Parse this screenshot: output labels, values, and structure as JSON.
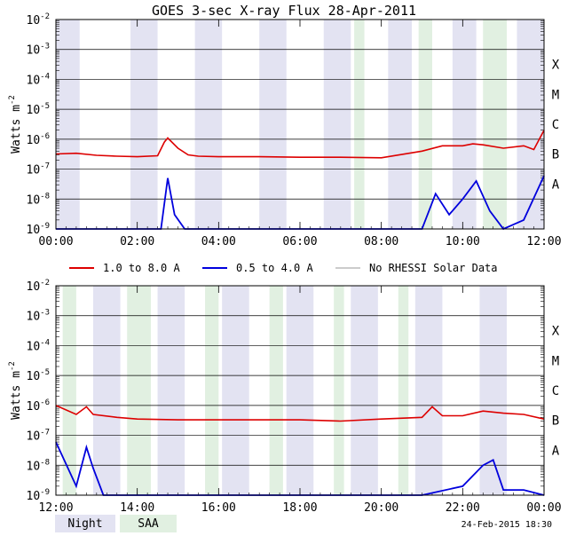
{
  "title": "GOES 3-sec X-ray Flux   28-Apr-2011",
  "footer_timestamp": "24-Feb-2015 18:30",
  "colors": {
    "long_channel": "#dd0000",
    "short_channel": "#0000dd",
    "no_rhessi": "#999999",
    "night": "#e3e3f2",
    "saa": "#e1f0e1",
    "grid": "#000000"
  },
  "legend": {
    "items": [
      {
        "label": "1.0 to 8.0 A",
        "color": "#dd0000"
      },
      {
        "label": "0.5 to 4.0 A",
        "color": "#0000dd"
      },
      {
        "label": "No RHESSI Solar Data",
        "color": "#999999"
      }
    ]
  },
  "period_legend": {
    "night_label": "Night",
    "saa_label": "SAA"
  },
  "chart_data": [
    {
      "type": "line",
      "scale": "log",
      "ylabel": "Watts m^-2",
      "xlim": [
        "00:00",
        "12:00"
      ],
      "ylim": [
        1e-09,
        0.01
      ],
      "y_ticks": [
        {
          "value": 0.01,
          "base": "10",
          "exp": "-2"
        },
        {
          "value": 0.001,
          "base": "10",
          "exp": "-3"
        },
        {
          "value": 0.0001,
          "base": "10",
          "exp": "-4"
        },
        {
          "value": 1e-05,
          "base": "10",
          "exp": "-5"
        },
        {
          "value": 1e-06,
          "base": "10",
          "exp": "-6"
        },
        {
          "value": 1e-07,
          "base": "10",
          "exp": "-7"
        },
        {
          "value": 1e-08,
          "base": "10",
          "exp": "-8"
        },
        {
          "value": 1e-09,
          "base": "10",
          "exp": "-9"
        }
      ],
      "x_ticks": [
        "00:00",
        "02:00",
        "04:00",
        "06:00",
        "08:00",
        "10:00",
        "12:00"
      ],
      "flare_classes": [
        {
          "label": "X",
          "value": 0.0001
        },
        {
          "label": "M",
          "value": 1e-05
        },
        {
          "label": "C",
          "value": 1e-06
        },
        {
          "label": "B",
          "value": 1e-07
        },
        {
          "label": "A",
          "value": 1e-08
        }
      ],
      "night_periods": [
        [
          "00:00",
          "00:35"
        ],
        [
          "01:50",
          "02:30"
        ],
        [
          "03:25",
          "04:05"
        ],
        [
          "05:00",
          "05:40"
        ],
        [
          "06:35",
          "07:15"
        ],
        [
          "08:10",
          "08:45"
        ],
        [
          "09:45",
          "10:20"
        ],
        [
          "11:20",
          "12:00"
        ]
      ],
      "saa_periods": [
        [
          "07:20",
          "07:35"
        ],
        [
          "08:55",
          "09:15"
        ],
        [
          "10:30",
          "11:05"
        ]
      ],
      "series": [
        {
          "name": "1.0 to 8.0 A",
          "x": [
            "00:00",
            "00:30",
            "01:00",
            "01:30",
            "02:00",
            "02:30",
            "02:40",
            "02:45",
            "03:00",
            "03:15",
            "03:30",
            "04:00",
            "05:00",
            "06:00",
            "07:00",
            "08:00",
            "09:00",
            "09:30",
            "10:00",
            "10:15",
            "10:30",
            "11:00",
            "11:30",
            "11:45",
            "12:00"
          ],
          "values": [
            3.2e-07,
            3.4e-07,
            2.9e-07,
            2.7e-07,
            2.6e-07,
            2.8e-07,
            8e-07,
            1.1e-06,
            5e-07,
            3e-07,
            2.7e-07,
            2.6e-07,
            2.6e-07,
            2.5e-07,
            2.5e-07,
            2.4e-07,
            4e-07,
            6e-07,
            6e-07,
            7e-07,
            6.5e-07,
            5e-07,
            6e-07,
            4.5e-07,
            2e-06
          ]
        },
        {
          "name": "0.5 to 4.0 A",
          "x": [
            "00:00",
            "01:00",
            "02:00",
            "02:35",
            "02:45",
            "02:55",
            "03:10",
            "04:00",
            "05:00",
            "06:00",
            "07:00",
            "08:00",
            "09:00",
            "09:20",
            "09:40",
            "10:00",
            "10:20",
            "10:40",
            "11:00",
            "11:30",
            "12:00"
          ],
          "values": [
            1e-09,
            1e-09,
            1e-09,
            1e-09,
            5e-08,
            3e-09,
            1e-09,
            1e-09,
            1e-09,
            1e-09,
            1e-09,
            1e-09,
            1e-09,
            1.5e-08,
            3e-09,
            1e-08,
            4e-08,
            4e-09,
            1e-09,
            2e-09,
            6e-08
          ]
        }
      ]
    },
    {
      "type": "line",
      "scale": "log",
      "ylabel": "Watts m^-2",
      "xlim": [
        "12:00",
        "00:00"
      ],
      "ylim": [
        1e-09,
        0.01
      ],
      "y_ticks": [
        {
          "value": 0.01,
          "base": "10",
          "exp": "-2"
        },
        {
          "value": 0.001,
          "base": "10",
          "exp": "-3"
        },
        {
          "value": 0.0001,
          "base": "10",
          "exp": "-4"
        },
        {
          "value": 1e-05,
          "base": "10",
          "exp": "-5"
        },
        {
          "value": 1e-06,
          "base": "10",
          "exp": "-6"
        },
        {
          "value": 1e-07,
          "base": "10",
          "exp": "-7"
        },
        {
          "value": 1e-08,
          "base": "10",
          "exp": "-8"
        },
        {
          "value": 1e-09,
          "base": "10",
          "exp": "-9"
        }
      ],
      "x_ticks": [
        "12:00",
        "14:00",
        "16:00",
        "18:00",
        "20:00",
        "22:00",
        "00:00"
      ],
      "flare_classes": [
        {
          "label": "X",
          "value": 0.0001
        },
        {
          "label": "M",
          "value": 1e-05
        },
        {
          "label": "C",
          "value": 1e-06
        },
        {
          "label": "B",
          "value": 1e-07
        },
        {
          "label": "A",
          "value": 1e-08
        }
      ],
      "night_periods": [
        [
          "12:55",
          "13:35"
        ],
        [
          "14:30",
          "15:10"
        ],
        [
          "16:05",
          "16:45"
        ],
        [
          "17:40",
          "18:20"
        ],
        [
          "19:15",
          "19:55"
        ],
        [
          "20:50",
          "21:30"
        ],
        [
          "22:25",
          "23:05"
        ]
      ],
      "saa_periods": [
        [
          "12:10",
          "12:30"
        ],
        [
          "13:45",
          "14:20"
        ],
        [
          "15:40",
          "16:00"
        ],
        [
          "17:15",
          "17:35"
        ],
        [
          "18:50",
          "19:05"
        ],
        [
          "20:25",
          "20:40"
        ]
      ],
      "series": [
        {
          "name": "1.0 to 8.0 A",
          "x": [
            "12:00",
            "12:30",
            "12:45",
            "12:55",
            "13:30",
            "14:00",
            "15:00",
            "16:00",
            "17:00",
            "18:00",
            "19:00",
            "20:00",
            "21:00",
            "21:15",
            "21:30",
            "22:00",
            "22:30",
            "23:00",
            "23:30",
            "00:00"
          ],
          "values": [
            1e-06,
            5e-07,
            9e-07,
            5e-07,
            4e-07,
            3.5e-07,
            3.3e-07,
            3.3e-07,
            3.3e-07,
            3.3e-07,
            3e-07,
            3.5e-07,
            4e-07,
            9e-07,
            4.5e-07,
            4.5e-07,
            6.5e-07,
            5.5e-07,
            5e-07,
            3.5e-07
          ]
        },
        {
          "name": "0.5 to 4.0 A",
          "x": [
            "12:00",
            "12:30",
            "12:45",
            "12:55",
            "13:10",
            "14:00",
            "15:00",
            "16:00",
            "17:00",
            "18:00",
            "19:00",
            "20:00",
            "21:00",
            "22:00",
            "22:30",
            "22:45",
            "23:00",
            "23:30",
            "00:00"
          ],
          "values": [
            6e-08,
            2e-09,
            4e-08,
            8e-09,
            1e-09,
            1e-09,
            1e-09,
            1e-09,
            1e-09,
            1e-09,
            1e-09,
            1e-09,
            1e-09,
            2e-09,
            1e-08,
            1.5e-08,
            1.5e-09,
            1.5e-09,
            1e-09
          ]
        }
      ]
    }
  ]
}
